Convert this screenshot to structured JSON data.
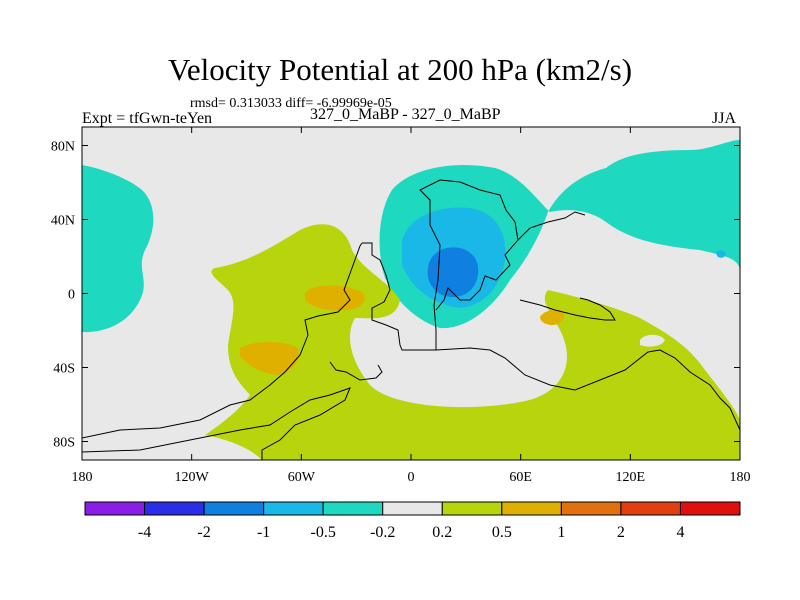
{
  "chart_data": {
    "type": "contour-map",
    "title": "Velocity Potential at 200 hPa (km2/s)",
    "stats": "rmsd= 0.313033 diff= -6.99969e-05",
    "left_label": "Expt = tfGwn-teYen",
    "center_label": "327_0_MaBP - 327_0_MaBP",
    "right_label": "JJA",
    "xlim": [
      -180,
      180
    ],
    "ylim": [
      -90,
      90
    ],
    "x_ticks": [
      {
        "value": -180,
        "label": "180"
      },
      {
        "value": -120,
        "label": "120W"
      },
      {
        "value": -60,
        "label": "60W"
      },
      {
        "value": 0,
        "label": "0"
      },
      {
        "value": 60,
        "label": "60E"
      },
      {
        "value": 120,
        "label": "120E"
      },
      {
        "value": 180,
        "label": "180"
      }
    ],
    "y_ticks": [
      {
        "value": 80,
        "label": "80N"
      },
      {
        "value": 40,
        "label": "40N"
      },
      {
        "value": 0,
        "label": "0"
      },
      {
        "value": -40,
        "label": "40S"
      },
      {
        "value": -80,
        "label": "80S"
      }
    ],
    "colorbar": {
      "levels": [
        "-4",
        "-2",
        "-1",
        "-0.5",
        "-0.2",
        "0.2",
        "0.5",
        "1",
        "2",
        "4"
      ],
      "colors": [
        "#8a1ee6",
        "#2a2ee6",
        "#0f7fe0",
        "#1ab8e6",
        "#1ed8c0",
        "#e8e8e8",
        "#b8d40c",
        "#e0b000",
        "#e07010",
        "#e04010",
        "#e01010"
      ]
    }
  }
}
